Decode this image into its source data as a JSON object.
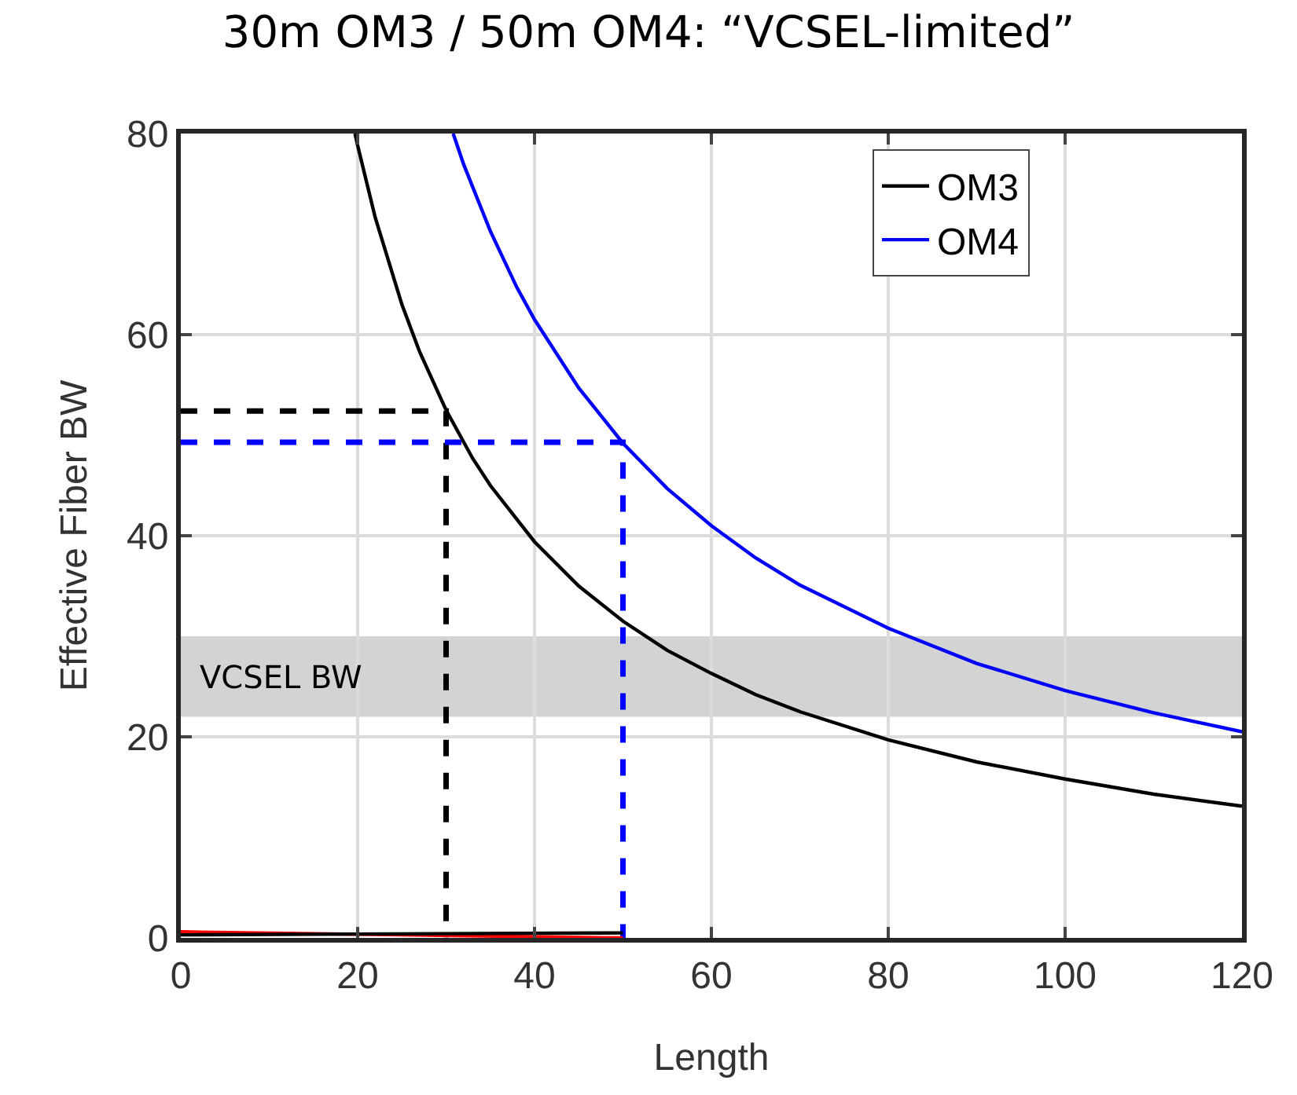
{
  "chart_data": {
    "type": "line",
    "title": "30m OM3 / 50m OM4: “VCSEL-limited”",
    "xlabel": "Length",
    "ylabel": "Effective Fiber BW",
    "xlim": [
      0,
      120
    ],
    "xticks": [
      0,
      20,
      40,
      60,
      80,
      100,
      120
    ],
    "ylim": [
      0,
      80
    ],
    "yticks": [
      0,
      20,
      40,
      60,
      80
    ],
    "grid": true,
    "legend": "top right",
    "marker": "none",
    "bands": [
      {
        "axis": "y",
        "from": 22,
        "to": 30,
        "label": "VCSEL BW",
        "color": "#d3d3d3"
      }
    ],
    "series": [
      {
        "name": "OM3",
        "color": "#000000",
        "line_style": "solid",
        "x": [
          19.7,
          20,
          22,
          25,
          27,
          30,
          33,
          35,
          40,
          45,
          50,
          55,
          60,
          65,
          70,
          80,
          90,
          100,
          110,
          120
        ],
        "values": [
          80,
          78.8,
          71.6,
          63,
          58.3,
          52.5,
          47.7,
          45,
          39.4,
          35,
          31.5,
          28.6,
          26.3,
          24.2,
          22.5,
          19.7,
          17.5,
          15.8,
          14.3,
          13.1
        ]
      },
      {
        "name": "OM4",
        "color": "#0000ff",
        "line_style": "solid",
        "x": [
          30.8,
          32,
          35,
          38,
          40,
          45,
          50,
          55,
          60,
          65,
          70,
          80,
          90,
          100,
          110,
          120
        ],
        "values": [
          80,
          76.9,
          70.3,
          64.7,
          61.5,
          54.7,
          49.2,
          44.7,
          41,
          37.8,
          35.1,
          30.8,
          27.3,
          24.6,
          22.4,
          20.5
        ]
      },
      {
        "color": "#000000",
        "line_style": "dashed",
        "x": [
          0,
          30,
          30
        ],
        "values": [
          52.4,
          52.4,
          0
        ]
      },
      {
        "color": "#0000ff",
        "line_style": "dashed",
        "x": [
          0,
          50,
          50
        ],
        "values": [
          49.3,
          49.3,
          0
        ]
      },
      {
        "color": "#ff0000",
        "line_style": "solid",
        "x": [
          0,
          50
        ],
        "values": [
          0.6,
          0
        ]
      },
      {
        "color": "#000000",
        "line_style": "solid",
        "x": [
          0,
          50
        ],
        "values": [
          0.3,
          0.5
        ]
      }
    ]
  }
}
